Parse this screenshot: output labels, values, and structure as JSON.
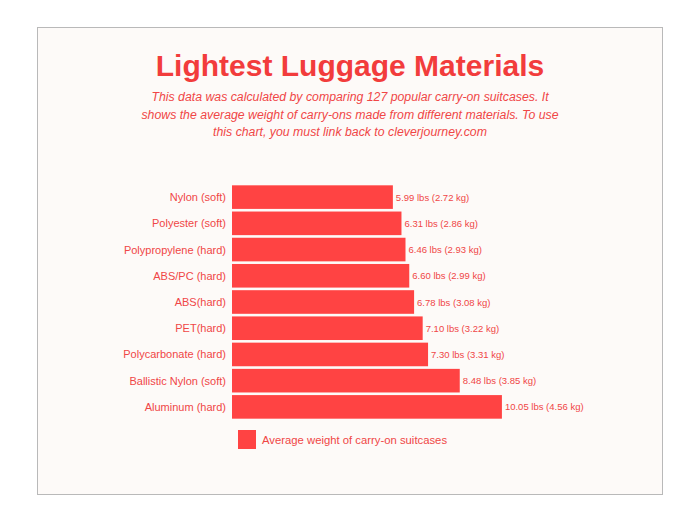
{
  "chart_data": {
    "type": "bar",
    "orientation": "horizontal",
    "title": "Lightest Luggage Materials",
    "subtitle": [
      "This data was calculated by comparing 127 popular carry-on suitcases. It",
      "shows the average weight of carry-ons made from different materials. To use",
      "this chart, you must link back to cleverjourney.com"
    ],
    "categories": [
      "Nylon (soft)",
      "Polyester (soft)",
      "Polypropylene (hard)",
      "ABS/PC (hard)",
      "ABS(hard)",
      "PET(hard)",
      "Polycarbonate (hard)",
      "Ballistic Nylon (soft)",
      "Aluminum (hard)"
    ],
    "series": [
      {
        "name": "Average weight of carry-on suitcases",
        "color": "#ff4343",
        "values": [
          5.99,
          6.31,
          6.46,
          6.6,
          6.78,
          7.1,
          7.3,
          8.48,
          10.05
        ],
        "value_labels": [
          "5.99 lbs (2.72 kg)",
          "6.31 lbs (2.86 kg)",
          "6.46 lbs (2.93 kg)",
          "6.60 lbs (2.99 kg)",
          "6.78 lbs (3.08 kg)",
          "7.10 lbs (3.22 kg)",
          "7.30 lbs (3.31 kg)",
          "8.48 lbs (3.85 kg)",
          "10.05 lbs (4.56 kg)"
        ]
      }
    ],
    "xlim": [
      0,
      14
    ],
    "grid": false,
    "tick_labels": "y",
    "data_labels": true,
    "legend": "bottom"
  }
}
